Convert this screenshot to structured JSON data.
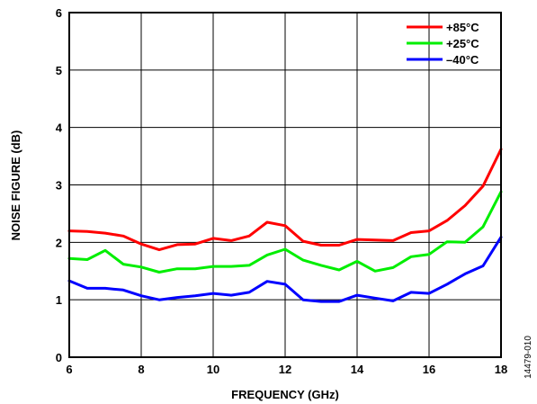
{
  "chart_data": {
    "type": "line",
    "title": "",
    "xlabel": "FREQUENCY (GHz)",
    "ylabel": "NOISE FIGURE (dB)",
    "xlim": [
      6,
      18
    ],
    "ylim": [
      0,
      6
    ],
    "xticks": [
      6,
      8,
      10,
      12,
      14,
      16,
      18
    ],
    "yticks": [
      0,
      1,
      2,
      3,
      4,
      5,
      6
    ],
    "grid": true,
    "legend_position": "top-right",
    "series": [
      {
        "name": "+85°C",
        "color": "#ff0000",
        "x": [
          6,
          6.5,
          7,
          7.5,
          8,
          8.5,
          9,
          9.5,
          10,
          10.5,
          11,
          11.5,
          12,
          12.5,
          13,
          13.5,
          14,
          14.5,
          15,
          15.5,
          16,
          16.5,
          17,
          17.5,
          18
        ],
        "y": [
          2.2,
          2.19,
          2.16,
          2.11,
          1.97,
          1.87,
          1.96,
          1.97,
          2.07,
          2.03,
          2.11,
          2.35,
          2.29,
          2.02,
          1.95,
          1.95,
          2.05,
          2.04,
          2.03,
          2.17,
          2.2,
          2.38,
          2.64,
          2.98,
          3.62
        ]
      },
      {
        "name": "+25°C",
        "color": "#00ee00",
        "x": [
          6,
          6.5,
          7,
          7.5,
          8,
          8.5,
          9,
          9.5,
          10,
          10.5,
          11,
          11.5,
          12,
          12.5,
          13,
          13.5,
          14,
          14.5,
          15,
          15.5,
          16,
          16.5,
          17,
          17.5,
          18
        ],
        "y": [
          1.72,
          1.7,
          1.86,
          1.62,
          1.57,
          1.48,
          1.54,
          1.54,
          1.58,
          1.58,
          1.6,
          1.78,
          1.88,
          1.69,
          1.6,
          1.52,
          1.67,
          1.5,
          1.56,
          1.75,
          1.79,
          2.01,
          2.0,
          2.27,
          2.88
        ]
      },
      {
        "name": "–40°C",
        "color": "#0000ff",
        "x": [
          6,
          6.5,
          7,
          7.5,
          8,
          8.5,
          9,
          9.5,
          10,
          10.5,
          11,
          11.5,
          12,
          12.5,
          13,
          13.5,
          14,
          14.5,
          15,
          15.5,
          16,
          16.5,
          17,
          17.5,
          18
        ],
        "y": [
          1.33,
          1.2,
          1.2,
          1.17,
          1.07,
          1.0,
          1.04,
          1.07,
          1.11,
          1.08,
          1.13,
          1.32,
          1.27,
          1.0,
          0.97,
          0.97,
          1.08,
          1.03,
          0.98,
          1.13,
          1.11,
          1.27,
          1.45,
          1.59,
          2.09
        ]
      }
    ]
  },
  "figure_id": "14479-010"
}
